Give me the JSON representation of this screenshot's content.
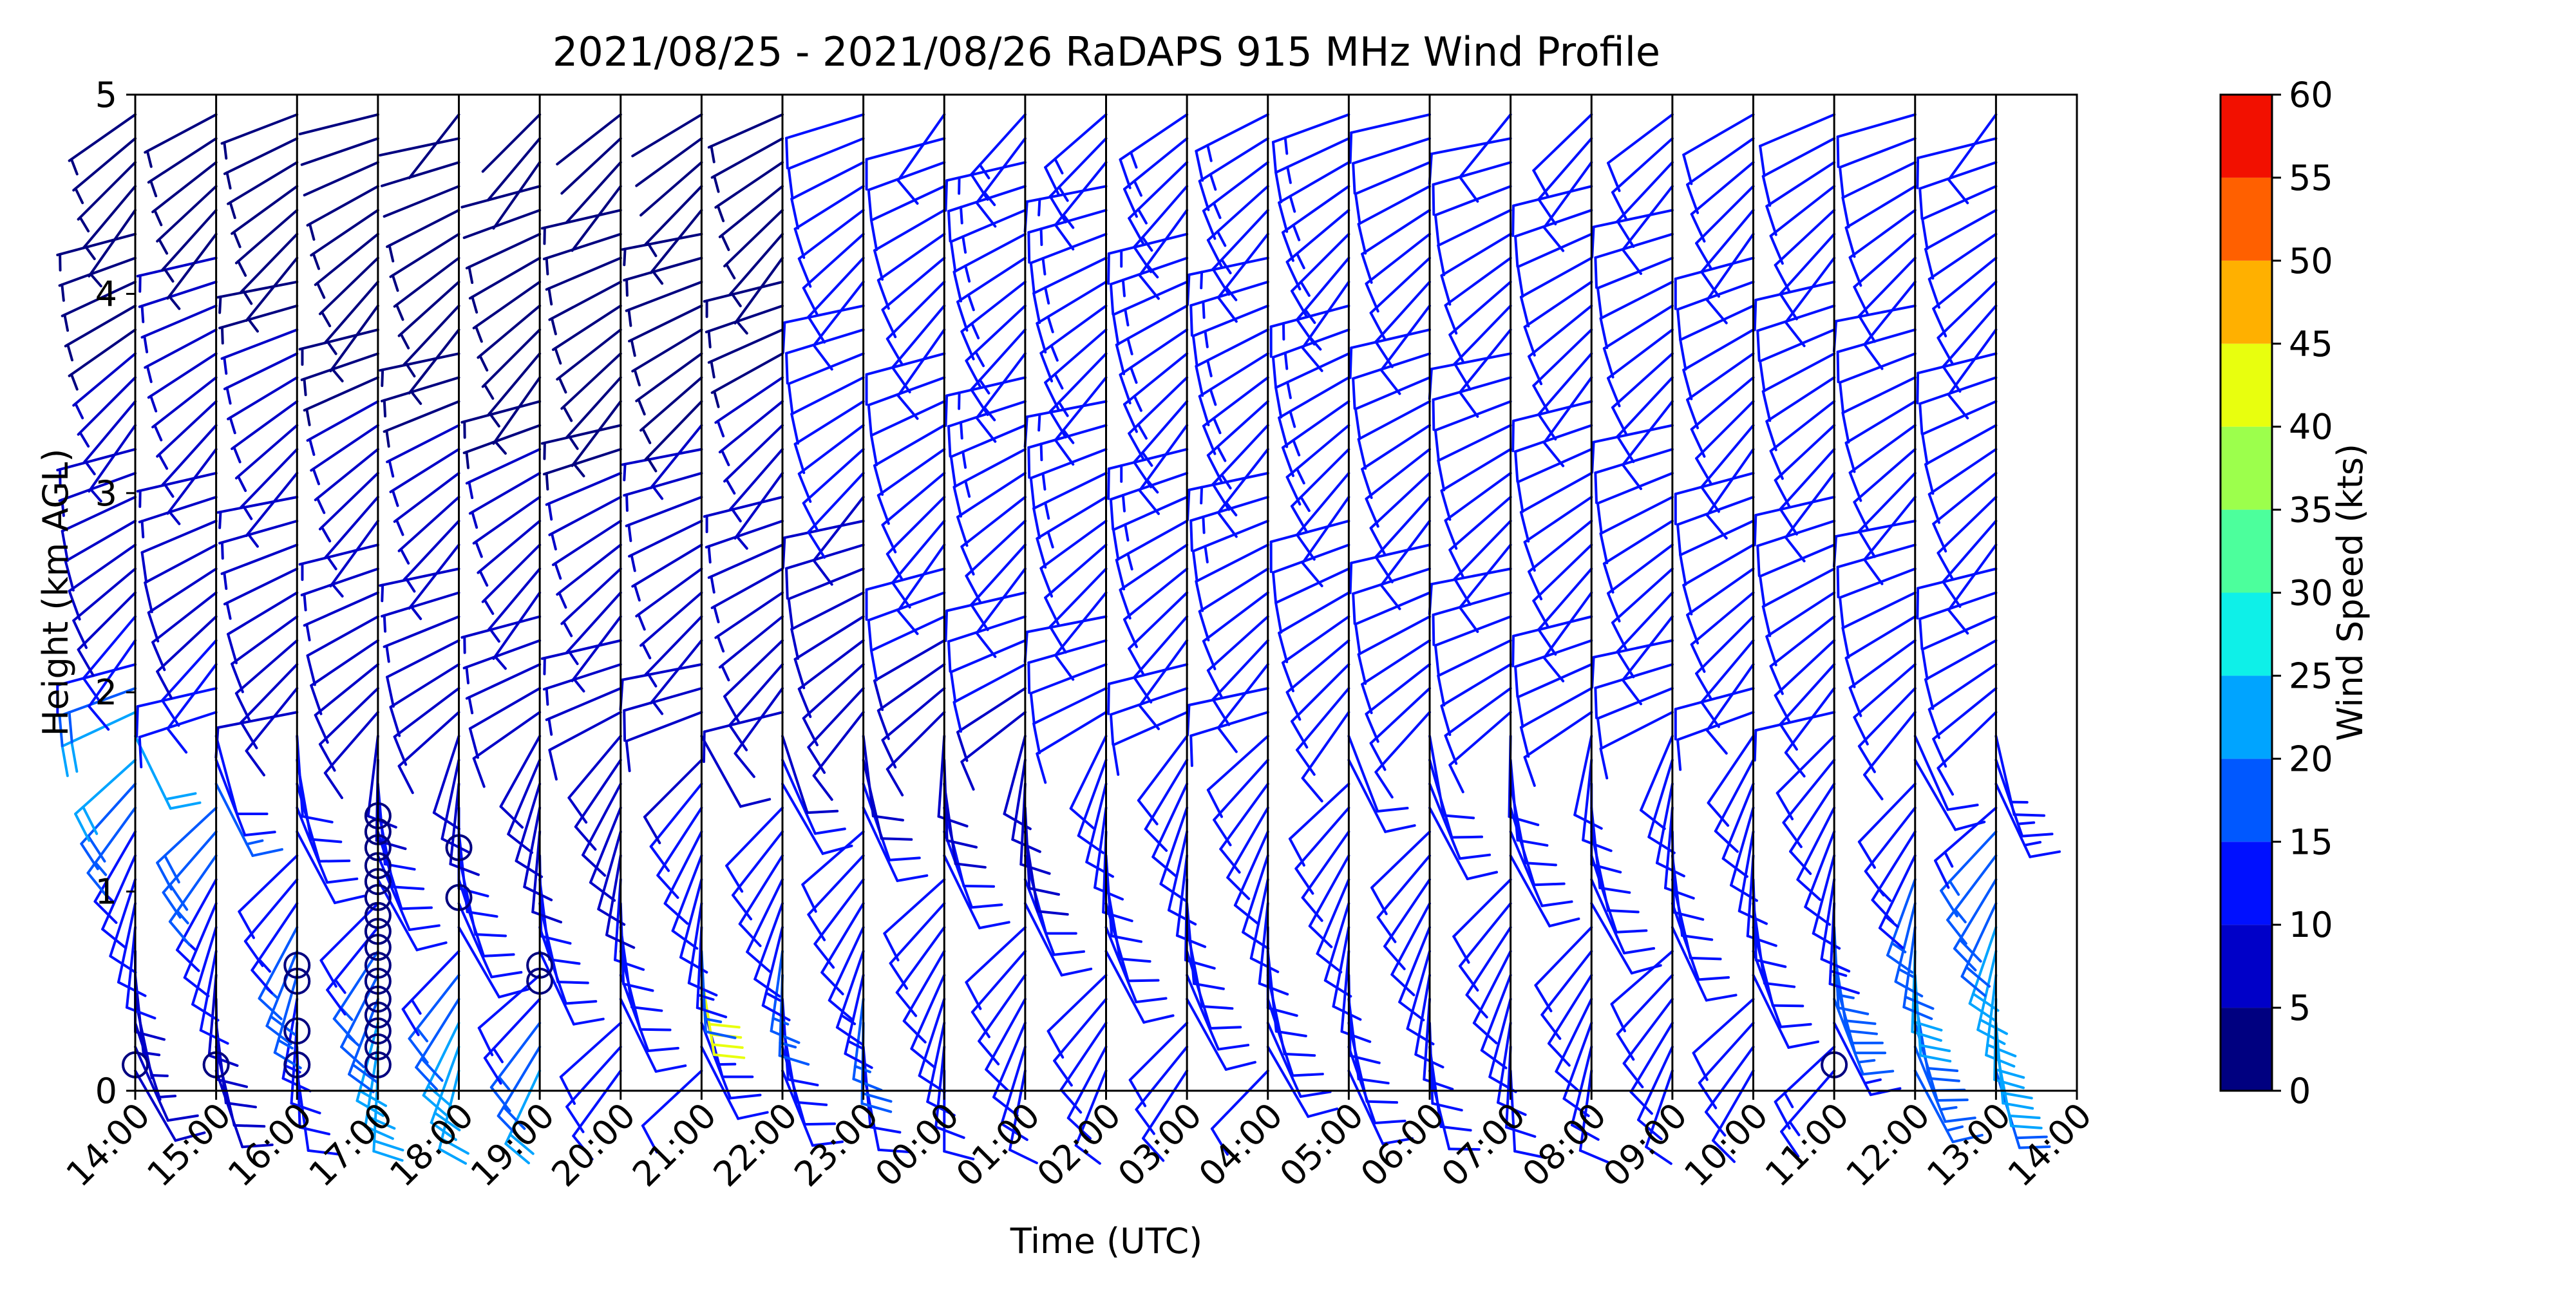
{
  "chart_data": {
    "type": "wind-barb-profile",
    "title": "2021/08/25 - 2021/08/26 RaDAPS 915 MHz Wind Profile",
    "xlabel": "Time (UTC)",
    "ylabel": "Height (km AGL)",
    "x_ticks": [
      "14:00",
      "15:00",
      "16:00",
      "17:00",
      "18:00",
      "19:00",
      "20:00",
      "21:00",
      "22:00",
      "23:00",
      "00:00",
      "01:00",
      "02:00",
      "03:00",
      "04:00",
      "05:00",
      "06:00",
      "07:00",
      "08:00",
      "09:00",
      "10:00",
      "11:00",
      "12:00",
      "13:00",
      "14:00"
    ],
    "y_ticks": [
      "0",
      "1",
      "2",
      "3",
      "4",
      "5"
    ],
    "ylim": [
      0,
      5
    ],
    "grid": "vertical lines at each hour",
    "colorbar": {
      "label": "Wind Speed (kts)",
      "ticks": [
        "0",
        "5",
        "10",
        "15",
        "20",
        "25",
        "30",
        "35",
        "40",
        "45",
        "50",
        "55",
        "60"
      ],
      "colors": [
        "#000080",
        "#0000c8",
        "#0010ff",
        "#0058ff",
        "#00a4ff",
        "#0ef0e8",
        "#4cff9c",
        "#9cff4c",
        "#e8ff0e",
        "#ffb000",
        "#ff6000",
        "#f21000",
        "#800000"
      ]
    },
    "profiles": [
      {
        "time": "14:00",
        "speed_kts": [
          8,
          8,
          6,
          6,
          5,
          8,
          10,
          10,
          12,
          12,
          14,
          16,
          18,
          20,
          20,
          20,
          18,
          12,
          12,
          10,
          8,
          8,
          8,
          8,
          8,
          7,
          6,
          6,
          5,
          5,
          5,
          4,
          4,
          4,
          4,
          4,
          4,
          4,
          3,
          3,
          3
        ]
      },
      {
        "time": "15:00",
        "speed_kts": [
          8,
          8,
          8,
          8,
          8,
          10,
          10,
          12,
          14,
          16,
          18,
          18,
          16,
          12,
          12,
          10,
          10,
          10,
          10,
          9,
          9,
          8,
          8,
          8,
          7,
          7,
          6,
          6,
          6,
          6,
          6,
          5,
          5,
          5,
          5,
          4,
          4,
          4,
          3,
          3,
          3
        ]
      },
      {
        "time": "16:00",
        "speed_kts": [
          10,
          10,
          12,
          14,
          16,
          18,
          16,
          14,
          12,
          12,
          12,
          12,
          10,
          10,
          10,
          9,
          9,
          8,
          8,
          8,
          8,
          7,
          7,
          6,
          6,
          6,
          6,
          5,
          5,
          5,
          5,
          5,
          4,
          4,
          4,
          4,
          4,
          4,
          3,
          3,
          3
        ]
      },
      {
        "time": "17:00",
        "speed_kts": [
          22,
          22,
          20,
          18,
          16,
          16,
          14,
          12,
          12,
          12,
          10,
          10,
          10,
          9,
          9,
          9,
          8,
          8,
          8,
          8,
          7,
          7,
          6,
          6,
          6,
          5,
          5,
          5,
          5,
          4,
          4,
          4,
          4,
          3,
          3,
          3,
          3,
          3,
          2,
          2,
          2
        ]
      },
      {
        "time": "18:00",
        "speed_kts": [
          22,
          22,
          20,
          18,
          16,
          14,
          12,
          12,
          12,
          10,
          10,
          10,
          9,
          9,
          9,
          8,
          8,
          8,
          8,
          7,
          7,
          6,
          6,
          6,
          5,
          5,
          5,
          5,
          4,
          4,
          4,
          4,
          3,
          3,
          3,
          3,
          3,
          2,
          2,
          2,
          2
        ]
      },
      {
        "time": "19:00",
        "speed_kts": [
          20,
          18,
          16,
          14,
          12,
          12,
          12,
          10,
          10,
          10,
          9,
          9,
          9,
          8,
          8,
          8,
          8,
          7,
          7,
          6,
          6,
          6,
          6,
          5,
          5,
          5,
          5,
          4,
          4,
          4,
          4,
          3,
          3,
          3,
          3,
          3,
          2,
          2,
          2,
          2,
          2
        ]
      },
      {
        "time": "20:00",
        "speed_kts": [
          10,
          10,
          10,
          10,
          12,
          12,
          10,
          10,
          10,
          9,
          9,
          9,
          8,
          8,
          8,
          8,
          7,
          7,
          7,
          6,
          6,
          6,
          6,
          5,
          5,
          5,
          4,
          4,
          4,
          4,
          4,
          3,
          3,
          3,
          3,
          3,
          3,
          2,
          2,
          2,
          2
        ]
      },
      {
        "time": "21:00",
        "speed_kts": [
          12,
          12,
          12,
          14,
          42,
          16,
          14,
          12,
          12,
          12,
          10,
          10,
          10,
          9,
          9,
          8,
          8,
          8,
          7,
          7,
          7,
          6,
          6,
          6,
          5,
          5,
          5,
          5,
          4,
          4,
          4,
          4,
          3,
          3,
          3,
          3,
          3,
          3,
          2,
          2,
          2
        ]
      },
      {
        "time": "22:00",
        "speed_kts": [
          12,
          12,
          12,
          12,
          16,
          16,
          14,
          12,
          12,
          12,
          10,
          10,
          10,
          10,
          9,
          9,
          8,
          8,
          8,
          7,
          7,
          7,
          6,
          6,
          6,
          6,
          5,
          5,
          5,
          5,
          4,
          4,
          4,
          4,
          4,
          4,
          3,
          3,
          3,
          3,
          3
        ]
      },
      {
        "time": "23:00",
        "speed_kts": [
          12,
          12,
          18,
          16,
          14,
          14,
          12,
          12,
          12,
          10,
          10,
          10,
          10,
          9,
          9,
          9,
          8,
          8,
          8,
          8,
          8,
          8,
          9,
          9,
          9,
          10,
          10,
          10,
          10,
          10,
          10,
          10,
          10,
          10,
          10,
          10,
          10,
          10,
          10,
          10,
          10
        ]
      },
      {
        "time": "00:00",
        "speed_kts": [
          12,
          12,
          12,
          12,
          12,
          12,
          12,
          10,
          10,
          10,
          10,
          10,
          9,
          9,
          9,
          9,
          9,
          9,
          9,
          10,
          10,
          10,
          11,
          11,
          11,
          12,
          12,
          12,
          12,
          12,
          12,
          12,
          12,
          12,
          12,
          12,
          12,
          12,
          12,
          12,
          12
        ]
      },
      {
        "time": "01:00",
        "speed_kts": [
          10,
          10,
          10,
          10,
          10,
          10,
          10,
          10,
          10,
          10,
          9,
          9,
          9,
          9,
          9,
          9,
          9,
          10,
          10,
          10,
          11,
          11,
          12,
          12,
          12,
          12,
          13,
          13,
          13,
          13,
          13,
          13,
          13,
          13,
          13,
          13,
          13,
          13,
          13,
          13,
          13
        ]
      },
      {
        "time": "02:00",
        "speed_kts": [
          10,
          10,
          10,
          10,
          10,
          10,
          10,
          10,
          10,
          10,
          10,
          10,
          10,
          10,
          10,
          10,
          10,
          10,
          10,
          11,
          11,
          12,
          12,
          12,
          13,
          13,
          13,
          14,
          14,
          14,
          14,
          14,
          14,
          14,
          14,
          14,
          14,
          14,
          14,
          14,
          14
        ]
      },
      {
        "time": "03:00",
        "speed_kts": [
          10,
          10,
          10,
          10,
          10,
          10,
          10,
          10,
          10,
          10,
          10,
          10,
          10,
          10,
          10,
          10,
          10,
          10,
          11,
          11,
          12,
          12,
          12,
          13,
          13,
          13,
          14,
          14,
          14,
          14,
          14,
          14,
          14,
          14,
          14,
          14,
          14,
          14,
          14,
          14,
          14
        ]
      },
      {
        "time": "04:00",
        "speed_kts": [
          10,
          10,
          10,
          10,
          10,
          10,
          10,
          10,
          10,
          10,
          10,
          10,
          10,
          10,
          10,
          10,
          10,
          10,
          11,
          11,
          12,
          12,
          12,
          13,
          13,
          13,
          14,
          14,
          14,
          14,
          14,
          14,
          14,
          14,
          14,
          14,
          14,
          14,
          14,
          14,
          14
        ]
      },
      {
        "time": "05:00",
        "speed_kts": [
          10,
          10,
          10,
          10,
          10,
          10,
          10,
          10,
          10,
          10,
          10,
          10,
          10,
          10,
          10,
          10,
          10,
          10,
          10,
          11,
          11,
          11,
          12,
          12,
          12,
          12,
          13,
          13,
          13,
          13,
          13,
          13,
          13,
          13,
          13,
          13,
          13,
          13,
          13,
          13,
          13
        ]
      },
      {
        "time": "06:00",
        "speed_kts": [
          10,
          10,
          10,
          10,
          10,
          10,
          10,
          10,
          10,
          10,
          10,
          10,
          10,
          10,
          10,
          10,
          10,
          10,
          10,
          10,
          10,
          10,
          11,
          11,
          11,
          11,
          11,
          11,
          11,
          11,
          11,
          11,
          11,
          11,
          11,
          11,
          11,
          11,
          11,
          11,
          11
        ]
      },
      {
        "time": "07:00",
        "speed_kts": [
          10,
          10,
          10,
          10,
          10,
          10,
          10,
          10,
          10,
          10,
          10,
          10,
          10,
          10,
          10,
          10,
          10,
          10,
          10,
          10,
          10,
          10,
          10,
          10,
          10,
          10,
          10,
          10,
          10,
          10,
          10,
          10,
          10,
          10,
          10,
          10,
          10,
          10,
          10,
          10,
          10
        ]
      },
      {
        "time": "08:00",
        "speed_kts": [
          10,
          10,
          10,
          10,
          10,
          10,
          10,
          10,
          10,
          10,
          10,
          10,
          10,
          10,
          10,
          10,
          10,
          10,
          10,
          10,
          10,
          10,
          10,
          11,
          11,
          11,
          11,
          11,
          11,
          11,
          11,
          12,
          12,
          12,
          12,
          12,
          12,
          12,
          12,
          12,
          12
        ]
      },
      {
        "time": "09:00",
        "speed_kts": [
          10,
          10,
          10,
          10,
          10,
          10,
          10,
          10,
          10,
          10,
          10,
          10,
          10,
          10,
          10,
          10,
          10,
          10,
          10,
          10,
          10,
          10,
          10,
          10,
          10,
          10,
          10,
          10,
          10,
          10,
          11,
          11,
          11,
          11,
          11,
          11,
          11,
          11,
          11,
          11,
          11
        ]
      },
      {
        "time": "10:00",
        "speed_kts": [
          12,
          12,
          12,
          12,
          12,
          12,
          12,
          12,
          12,
          12,
          11,
          11,
          10,
          10,
          10,
          10,
          10,
          10,
          10,
          10,
          10,
          10,
          10,
          10,
          10,
          10,
          10,
          10,
          10,
          10,
          10,
          10,
          10,
          10,
          10,
          10,
          10,
          10,
          10,
          10,
          10
        ]
      },
      {
        "time": "11:00",
        "speed_kts": [
          14,
          14,
          14,
          16,
          18,
          18,
          16,
          14,
          12,
          12,
          12,
          11,
          11,
          10,
          10,
          10,
          10,
          10,
          10,
          10,
          10,
          10,
          10,
          10,
          10,
          10,
          10,
          10,
          10,
          10,
          10,
          10,
          10,
          10,
          10,
          10,
          10,
          10,
          10,
          10,
          10
        ]
      },
      {
        "time": "12:00",
        "speed_kts": [
          16,
          16,
          18,
          18,
          20,
          20,
          18,
          16,
          16,
          14,
          14,
          12,
          12,
          12,
          12,
          10,
          10,
          10,
          10,
          10,
          10,
          10,
          10,
          10,
          10,
          10,
          10,
          10,
          10,
          10,
          10,
          10,
          10,
          10,
          10,
          10,
          10,
          10,
          10,
          10,
          10
        ]
      },
      {
        "time": "13:00",
        "speed_kts": [
          18,
          20,
          22,
          22,
          22,
          22,
          20,
          18,
          18,
          16,
          16,
          14,
          14,
          14,
          14,
          12,
          12,
          12,
          12,
          12,
          12,
          12,
          12,
          12,
          12,
          12,
          12,
          12,
          12,
          12,
          12,
          12,
          12,
          12,
          12,
          12,
          12,
          12,
          12,
          12,
          12
        ]
      }
    ],
    "calm_markers": [
      {
        "time": "14:00",
        "heights_km": [
          0.13
        ]
      },
      {
        "time": "15:00",
        "heights_km": [
          0.13
        ]
      },
      {
        "time": "16:00",
        "heights_km": [
          0.13,
          0.3,
          0.55,
          0.63
        ]
      },
      {
        "time": "17:00",
        "heights_km": [
          0.13,
          0.22,
          0.3,
          0.38,
          0.46,
          0.55,
          0.63,
          0.72,
          0.8,
          0.88,
          0.97,
          1.05,
          1.13,
          1.22,
          1.3,
          1.38
        ]
      },
      {
        "time": "18:00",
        "heights_km": [
          0.97,
          1.22
        ]
      },
      {
        "time": "19:00",
        "heights_km": [
          0.55,
          0.63
        ]
      },
      {
        "time": "11:00",
        "heights_km": [
          0.13
        ]
      }
    ]
  }
}
